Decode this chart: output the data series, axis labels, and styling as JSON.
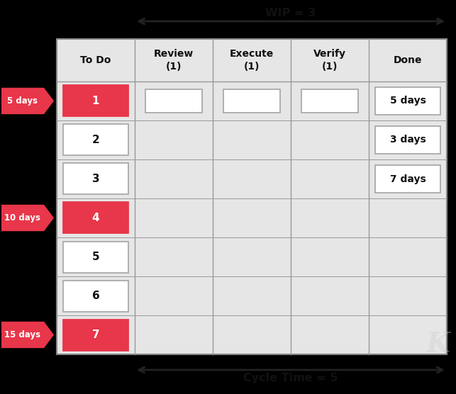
{
  "title_wip": "WIP = 3",
  "title_cycle": "Cycle Time = 5",
  "columns": [
    "To Do",
    "Review\n(1)",
    "Execute\n(1)",
    "Verify\n(1)",
    "Done"
  ],
  "card_bg_red": "#e8364a",
  "grid_bg": "#e6e6e6",
  "col_divider": "#bbbbbb",
  "todo_cards": [
    {
      "num": "1",
      "red": true,
      "row": 0
    },
    {
      "num": "2",
      "red": false,
      "row": 1
    },
    {
      "num": "3",
      "red": false,
      "row": 2
    },
    {
      "num": "4",
      "red": true,
      "row": 3
    },
    {
      "num": "5",
      "red": false,
      "row": 4
    },
    {
      "num": "6",
      "red": false,
      "row": 5
    },
    {
      "num": "7",
      "red": true,
      "row": 6
    }
  ],
  "review_cards": [
    {
      "row": 0
    }
  ],
  "execute_cards": [
    {
      "row": 0
    }
  ],
  "verify_cards": [
    {
      "row": 0
    }
  ],
  "done_cards": [
    {
      "label": "5 days",
      "row": 0
    },
    {
      "label": "3 days",
      "row": 1
    },
    {
      "label": "7 days",
      "row": 2
    }
  ],
  "side_arrows": [
    {
      "label": "5 days",
      "row": 0
    },
    {
      "label": "10 days",
      "row": 3
    },
    {
      "label": "15 days",
      "row": 6
    }
  ],
  "fig_w": 6.43,
  "fig_h": 5.56,
  "dpi": 100
}
